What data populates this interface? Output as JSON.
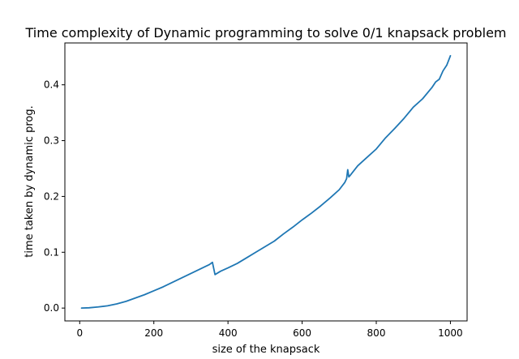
{
  "chart_data": {
    "type": "line",
    "title": "Time complexity of Dynamic programming to solve 0/1 knapsack problem",
    "xlabel": "size of the knapsack",
    "ylabel": "time taken by dynamic prog.",
    "xlim": [
      -40,
      1045
    ],
    "ylim": [
      -0.023,
      0.475
    ],
    "xticks": [
      0,
      200,
      400,
      600,
      800,
      1000
    ],
    "yticks": [
      0.0,
      0.1,
      0.2,
      0.3,
      0.4
    ],
    "xtick_labels": [
      "0",
      "200",
      "400",
      "600",
      "800",
      "1000"
    ],
    "ytick_labels": [
      "0.0",
      "0.1",
      "0.2",
      "0.3",
      "0.4"
    ],
    "grid": false,
    "series": [
      {
        "color": "#1f77b4",
        "x": [
          5,
          25,
          50,
          75,
          100,
          125,
          150,
          175,
          200,
          225,
          250,
          275,
          300,
          325,
          350,
          358,
          365,
          380,
          400,
          425,
          450,
          475,
          500,
          525,
          550,
          575,
          600,
          625,
          650,
          675,
          700,
          715,
          720,
          723,
          726,
          730,
          750,
          775,
          800,
          825,
          850,
          875,
          900,
          925,
          950,
          960,
          970,
          980,
          990,
          1000
        ],
        "y": [
          0.0,
          0.0005,
          0.002,
          0.004,
          0.0075,
          0.012,
          0.018,
          0.024,
          0.031,
          0.038,
          0.046,
          0.054,
          0.062,
          0.07,
          0.078,
          0.082,
          0.06,
          0.066,
          0.072,
          0.08,
          0.09,
          0.1,
          0.11,
          0.12,
          0.133,
          0.145,
          0.158,
          0.17,
          0.183,
          0.197,
          0.212,
          0.225,
          0.232,
          0.248,
          0.235,
          0.238,
          0.255,
          0.27,
          0.285,
          0.305,
          0.322,
          0.34,
          0.36,
          0.375,
          0.395,
          0.405,
          0.41,
          0.425,
          0.435,
          0.452
        ]
      }
    ]
  }
}
